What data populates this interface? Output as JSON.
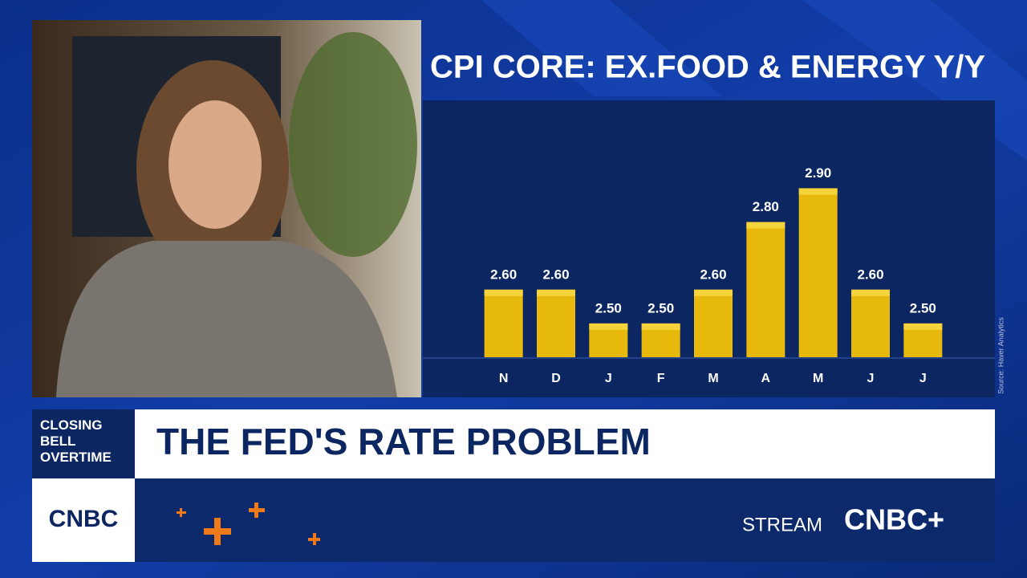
{
  "chart_data": {
    "type": "bar",
    "title": "CPI CORE: EX.FOOD & ENERGY Y/Y",
    "categories": [
      "N",
      "D",
      "J",
      "F",
      "M",
      "A",
      "M",
      "J",
      "J"
    ],
    "values": [
      2.6,
      2.6,
      2.5,
      2.5,
      2.6,
      2.8,
      2.9,
      2.6,
      2.5
    ],
    "value_labels": [
      "2.60",
      "2.60",
      "2.50",
      "2.50",
      "2.60",
      "2.80",
      "2.90",
      "2.60",
      "2.50"
    ],
    "color": "#e6b90c",
    "ylim": [
      2.4,
      3.16
    ],
    "grid": false,
    "source": "Source: Haver Analytics"
  },
  "lower_third": {
    "show": "CLOSING BELL OVERTIME",
    "headline": "THE FED'S RATE PROBLEM"
  },
  "footer": {
    "logo": "CNBC",
    "stream_label": "STREAM",
    "stream_brand": "CNBC+"
  }
}
